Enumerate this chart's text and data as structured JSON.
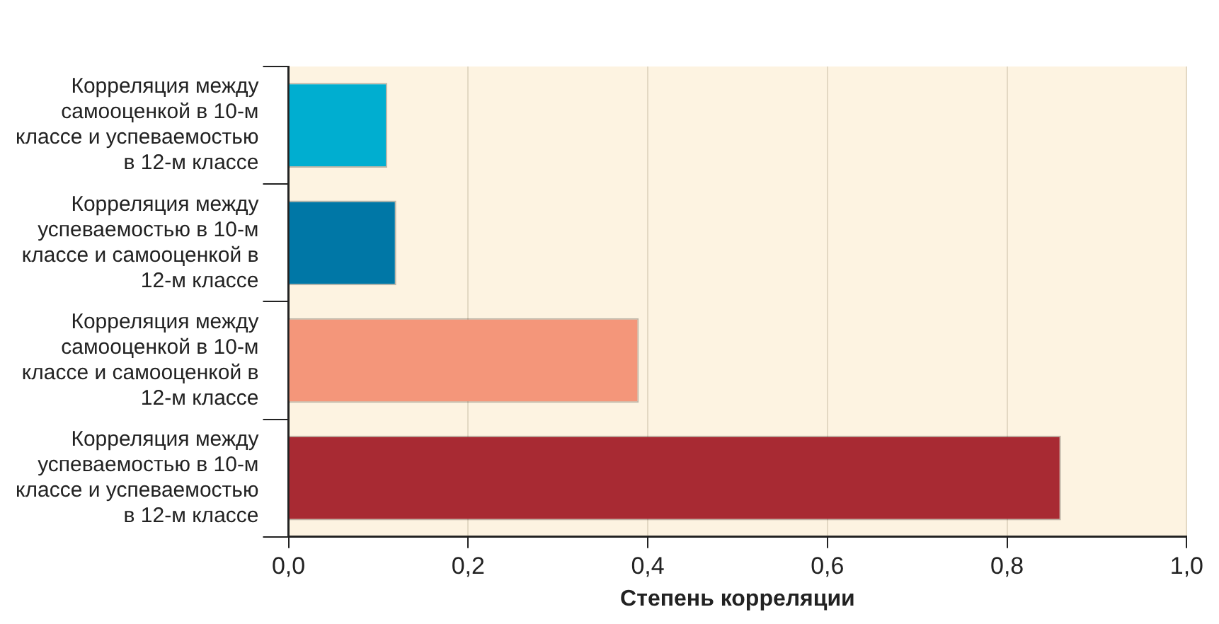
{
  "chart_data": {
    "type": "bar",
    "orientation": "horizontal",
    "xlabel": "Степень корреляции",
    "categories": [
      "Корреляция между самооценкой в 10-м классе и успеваемостью в 12-м классе",
      "Корреляция между успеваемостью в 10-м классе и самооценкой в 12-м классе",
      "Корреляция между самооценкой в 10-м классе и самооценкой в 12-м классе",
      "Корреляция между успеваемостью в 10-м классе и успеваемостью в 12-м классе"
    ],
    "values": [
      0.11,
      0.12,
      0.39,
      0.86
    ],
    "colors": [
      "#00aed0",
      "#0077a6",
      "#f4967a",
      "#a82a33"
    ],
    "xlim": [
      0,
      1
    ],
    "xticks": [
      {
        "value": 0,
        "label": "0,0"
      },
      {
        "value": 0.2,
        "label": "0,2"
      },
      {
        "value": 0.4,
        "label": "0,4"
      },
      {
        "value": 0.6,
        "label": "0,6"
      },
      {
        "value": 0.8,
        "label": "0,8"
      },
      {
        "value": 1,
        "label": "1,0"
      }
    ],
    "grid": "x",
    "legend": false
  }
}
